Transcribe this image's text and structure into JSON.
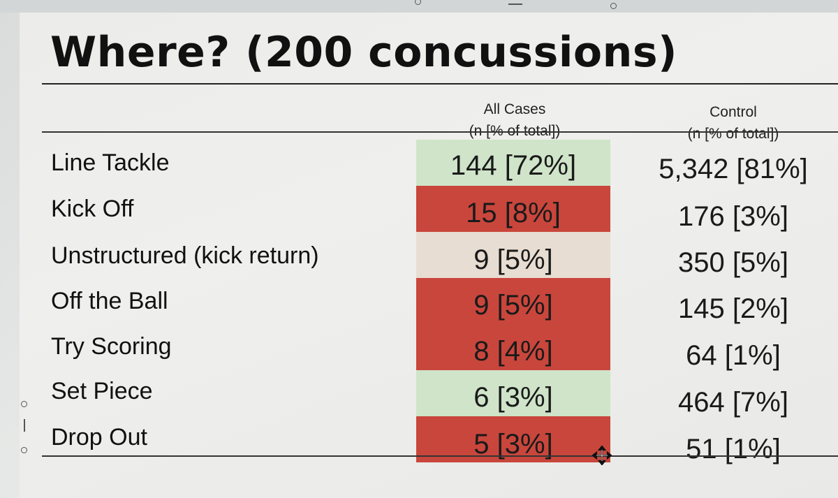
{
  "slide": {
    "title": "Where? (200 concussions)"
  },
  "table": {
    "columns": {
      "cases": {
        "line1": "All Cases",
        "line2": "(n [% of total])"
      },
      "control": {
        "line1": "Control",
        "line2": "(n [% of total])"
      }
    },
    "rows": [
      {
        "label": "Line Tackle",
        "cases": "144 [72%]",
        "control": "5,342 [81%]",
        "highlight": "#cfe4c9"
      },
      {
        "label": "Kick Off",
        "cases": "15 [8%]",
        "control": "176 [3%]",
        "highlight": "#c9463c"
      },
      {
        "label": "Unstructured (kick return)",
        "cases": "9 [5%]",
        "control": "350 [5%]",
        "highlight": "#e8ddd2"
      },
      {
        "label": "Off the Ball",
        "cases": "9 [5%]",
        "control": "145 [2%]",
        "highlight": "#c9463c"
      },
      {
        "label": "Try Scoring",
        "cases": "8 [4%]",
        "control": "64 [1%]",
        "highlight": "#c9463c"
      },
      {
        "label": "Set Piece",
        "cases": "6 [3%]",
        "control": "464 [7%]",
        "highlight": "#cfe4c9"
      },
      {
        "label": "Drop Out",
        "cases": "5 [3%]",
        "control": "51 [1%]",
        "highlight": "#c9463c"
      }
    ]
  }
}
